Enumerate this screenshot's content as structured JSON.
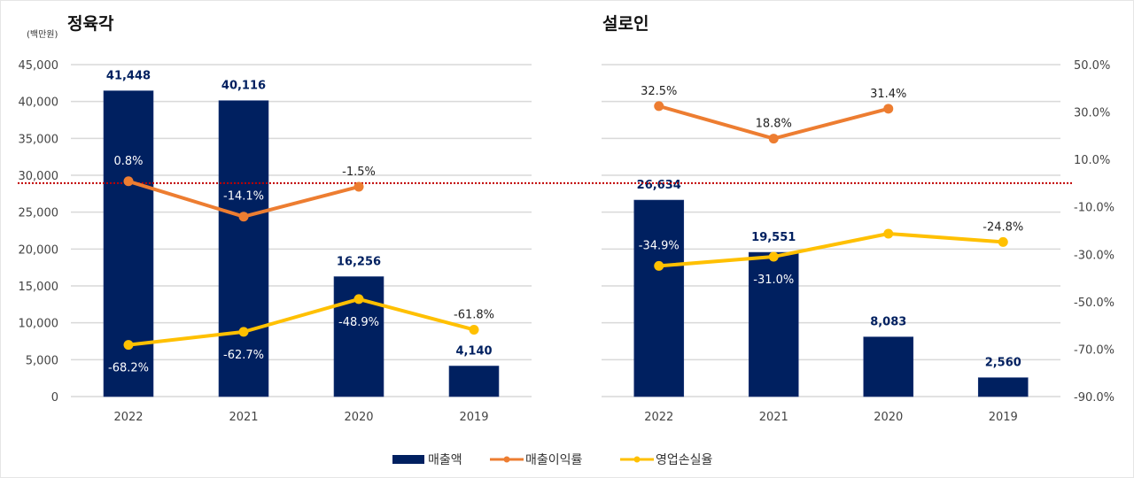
{
  "chart_data": [
    {
      "type": "bar",
      "title": "정육각",
      "unit_label": "(백만원)",
      "categories": [
        "2022",
        "2021",
        "2020",
        "2019"
      ],
      "primary_axis": {
        "ylim": [
          0,
          45000
        ],
        "ticks": [
          0,
          5000,
          10000,
          15000,
          20000,
          25000,
          30000,
          35000,
          40000,
          45000
        ],
        "tick_labels": [
          "0",
          "5,000",
          "10,000",
          "15,000",
          "20,000",
          "25,000",
          "30,000",
          "35,000",
          "40,000",
          "45,000"
        ]
      },
      "secondary_axis": {
        "ylim": [
          -90,
          50
        ],
        "visible": false
      },
      "grid": true,
      "zero_reference_line": {
        "value_pct": 0,
        "color": "#C00000",
        "style": "dotted"
      },
      "series": [
        {
          "name": "매출액",
          "type": "bar",
          "axis": "primary",
          "color": "#002060",
          "values": [
            41448,
            40116,
            16256,
            4140
          ],
          "labels": [
            "41,448",
            "40,116",
            "16,256",
            "4,140"
          ]
        },
        {
          "name": "매출이익률",
          "type": "line",
          "axis": "secondary",
          "color": "#ED7D31",
          "values": [
            0.8,
            -14.1,
            -1.5,
            null
          ],
          "labels": [
            "0.8%",
            "-14.1%",
            "-1.5%",
            null
          ],
          "label_pos": [
            "above-in",
            "above-in",
            "above",
            null
          ]
        },
        {
          "name": "영업손실율",
          "type": "line",
          "axis": "secondary",
          "color": "#FFC000",
          "values": [
            -68.2,
            -62.7,
            -48.9,
            -61.8
          ],
          "labels": [
            "-68.2%",
            "-62.7%",
            "-48.9%",
            "-61.8%"
          ],
          "label_pos": [
            "below-in",
            "below-in",
            "below-in",
            "above"
          ]
        }
      ]
    },
    {
      "type": "bar",
      "title": "설로인",
      "categories": [
        "2022",
        "2021",
        "2020",
        "2019"
      ],
      "primary_axis": {
        "ylim": [
          0,
          45000
        ],
        "visible": false
      },
      "secondary_axis": {
        "ylim": [
          -90,
          50
        ],
        "ticks": [
          50,
          30,
          10,
          -10,
          -30,
          -50,
          -70,
          -90
        ],
        "tick_labels": [
          "50.0%",
          "30.0%",
          "10.0%",
          "-10.0%",
          "-30.0%",
          "-50.0%",
          "-70.0%",
          "-90.0%"
        ]
      },
      "grid": true,
      "zero_reference_line": {
        "value_pct": 0,
        "color": "#C00000",
        "style": "dotted"
      },
      "series": [
        {
          "name": "매출액",
          "type": "bar",
          "axis": "primary",
          "color": "#002060",
          "values": [
            26634,
            19551,
            8083,
            2560
          ],
          "labels": [
            "26,634",
            "19,551",
            "8,083",
            "2,560"
          ]
        },
        {
          "name": "매출이익률",
          "type": "line",
          "axis": "secondary",
          "color": "#ED7D31",
          "values": [
            32.5,
            18.8,
            31.4,
            null
          ],
          "labels": [
            "32.5%",
            "18.8%",
            "31.4%",
            null
          ],
          "label_pos": [
            "above",
            "above",
            "above",
            null
          ]
        },
        {
          "name": "영업손실율",
          "type": "line",
          "axis": "secondary",
          "color": "#FFC000",
          "values": [
            -34.9,
            -31.0,
            -21.3,
            -24.8
          ],
          "labels": [
            "-34.9%",
            "-31.0%",
            null,
            "-24.8%"
          ],
          "label_pos": [
            "above-in",
            "below-in",
            null,
            "above"
          ]
        }
      ]
    }
  ],
  "legend": {
    "placement": "bottom-center",
    "items": [
      {
        "label": "매출액",
        "kind": "bar",
        "color": "#002060"
      },
      {
        "label": "매출이익률",
        "kind": "line",
        "color": "#ED7D31"
      },
      {
        "label": "영업손실율",
        "kind": "line",
        "color": "#FFC000"
      }
    ]
  }
}
